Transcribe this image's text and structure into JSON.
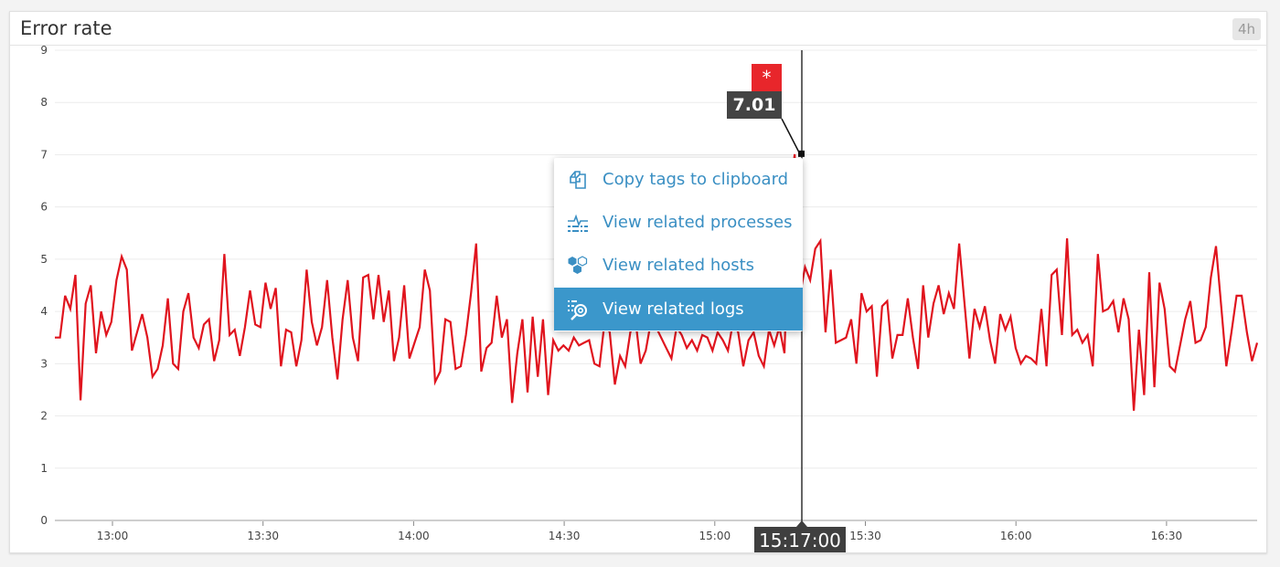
{
  "panel": {
    "title": "Error rate",
    "time_range_badge": "4h"
  },
  "tooltip": {
    "marker_symbol": "*",
    "value": "7.01",
    "time": "15:17:00",
    "marker_color": "#e8262b"
  },
  "context_menu": {
    "items": [
      {
        "label": "Copy tags to clipboard",
        "icon": "copy-icon",
        "active": false
      },
      {
        "label": "View related processes",
        "icon": "processes-icon",
        "active": false
      },
      {
        "label": "View related hosts",
        "icon": "hosts-icon",
        "active": false
      },
      {
        "label": "View related logs",
        "icon": "logs-search-icon",
        "active": true
      }
    ],
    "accent_color": "#3b97cb"
  },
  "chart_data": {
    "type": "line",
    "title": "Error rate",
    "xlabel": "",
    "ylabel": "",
    "ylim": [
      0,
      9
    ],
    "yticks": [
      "0",
      "1",
      "2",
      "3",
      "4",
      "5",
      "6",
      "7",
      "8",
      "9"
    ],
    "xticks": [
      "13:00",
      "13:30",
      "14:00",
      "14:30",
      "15:00",
      "15:30",
      "16:00",
      "16:30"
    ],
    "x_range": [
      "12:48:30",
      "16:48:00"
    ],
    "grid": true,
    "legend": null,
    "series": [
      {
        "name": "error rate",
        "color": "#e0141e",
        "values": [
          3.5,
          3.5,
          4.3,
          4.05,
          4.7,
          2.3,
          4.15,
          4.5,
          3.2,
          4.0,
          3.55,
          3.8,
          4.6,
          5.05,
          4.8,
          3.25,
          3.6,
          3.95,
          3.5,
          2.75,
          2.9,
          3.35,
          4.25,
          3.0,
          2.9,
          4.0,
          4.35,
          3.5,
          3.3,
          3.75,
          3.85,
          3.05,
          3.45,
          5.1,
          3.55,
          3.65,
          3.15,
          3.7,
          4.4,
          3.75,
          3.7,
          4.55,
          4.05,
          4.45,
          2.95,
          3.65,
          3.6,
          2.95,
          3.45,
          4.8,
          3.8,
          3.35,
          3.7,
          4.6,
          3.5,
          2.7,
          3.85,
          4.6,
          3.5,
          3.05,
          4.65,
          4.7,
          3.85,
          4.7,
          3.8,
          4.4,
          3.05,
          3.5,
          4.5,
          3.1,
          3.4,
          3.7,
          4.8,
          4.4,
          2.65,
          2.85,
          3.85,
          3.8,
          2.9,
          2.95,
          3.55,
          4.35,
          5.3,
          2.85,
          3.3,
          3.4,
          4.3,
          3.5,
          3.85,
          2.25,
          3.2,
          3.85,
          2.45,
          3.9,
          2.75,
          3.85,
          2.4,
          3.45,
          3.25,
          3.35,
          3.25,
          3.5,
          3.35,
          3.4,
          3.45,
          3.0,
          2.95,
          3.8,
          3.6,
          2.6,
          3.15,
          2.95,
          3.6,
          3.85,
          3.0,
          3.25,
          3.8,
          3.7,
          3.5,
          3.3,
          3.1,
          3.7,
          3.55,
          3.3,
          3.45,
          3.25,
          3.55,
          3.5,
          3.25,
          3.6,
          3.45,
          3.25,
          3.8,
          3.6,
          2.95,
          3.45,
          3.6,
          3.15,
          2.95,
          3.65,
          3.35,
          3.7,
          3.2,
          6.2,
          7.01,
          4.3,
          4.85,
          4.6,
          5.2,
          5.35,
          3.6,
          4.8,
          3.4,
          3.45,
          3.5,
          3.85,
          3.0,
          4.35,
          4.0,
          4.1,
          2.75,
          4.1,
          4.2,
          3.1,
          3.55,
          3.55,
          4.25,
          3.5,
          2.9,
          4.5,
          3.5,
          4.15,
          4.5,
          3.95,
          4.35,
          4.05,
          5.3,
          4.2,
          3.1,
          4.05,
          3.7,
          4.1,
          3.45,
          3.0,
          3.95,
          3.65,
          3.9,
          3.3,
          3.0,
          3.15,
          3.1,
          3.0,
          4.05,
          2.95,
          4.7,
          4.8,
          3.55,
          5.4,
          3.55,
          3.65,
          3.4,
          3.55,
          2.95,
          5.1,
          4.0,
          4.05,
          4.2,
          3.6,
          4.25,
          3.85,
          2.1,
          3.65,
          2.4,
          4.75,
          2.55,
          4.55,
          4.05,
          2.95,
          2.85,
          3.35,
          3.85,
          4.2,
          3.4,
          3.45,
          3.7,
          4.65,
          5.25,
          4.1,
          2.95,
          3.6,
          4.3,
          4.3,
          3.6,
          3.05,
          3.4
        ]
      }
    ],
    "highlight": {
      "time": "15:17:00",
      "value": 7.01
    }
  }
}
